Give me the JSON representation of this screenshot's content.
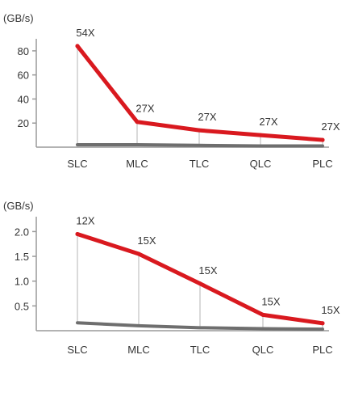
{
  "colors": {
    "primary": "#d9191f",
    "baseline": "#6e6e6e",
    "axis": "#9a9a9a",
    "drop": "#b5b5b5"
  },
  "chart_data": [
    {
      "type": "line",
      "ylabel": "(GB/s)",
      "categories": [
        "SLC",
        "MLC",
        "TLC",
        "QLC",
        "PLC"
      ],
      "yticks": [
        20,
        40,
        60,
        80
      ],
      "ylim": [
        0,
        90
      ],
      "series": [
        {
          "values": [
            84,
            21,
            14,
            10,
            6
          ]
        },
        {
          "values": [
            2,
            2,
            1.5,
            1,
            1
          ]
        }
      ],
      "data_labels": [
        "54X",
        "27X",
        "27X",
        "27X",
        "27X"
      ],
      "grid": false
    },
    {
      "type": "line",
      "ylabel": "(GB/s)",
      "categories": [
        "SLC",
        "MLC",
        "TLC",
        "QLC",
        "PLC"
      ],
      "yticks": [
        "0.5",
        "1.0",
        "1.5",
        "2.0"
      ],
      "ylim": [
        0,
        2.3
      ],
      "series": [
        {
          "values": [
            1.95,
            1.55,
            0.95,
            0.32,
            0.15
          ]
        },
        {
          "values": [
            0.16,
            0.1,
            0.06,
            0.04,
            0.03
          ]
        }
      ],
      "data_labels": [
        "12X",
        "15X",
        "15X",
        "15X",
        "15X"
      ],
      "grid": false
    }
  ]
}
